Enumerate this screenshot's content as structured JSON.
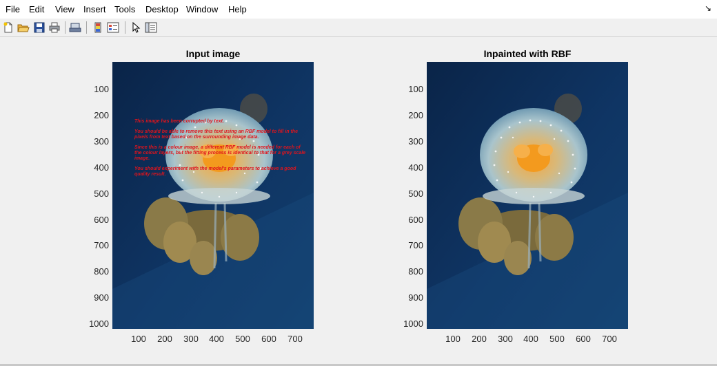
{
  "menu": {
    "items": [
      "File",
      "Edit",
      "View",
      "Insert",
      "Tools",
      "Desktop",
      "Window",
      "Help"
    ],
    "corner_arrow": "↘"
  },
  "toolbar": {
    "buttons": [
      "new-figure-icon",
      "open-file-icon",
      "save-icon",
      "print-icon",
      "print-preview-icon",
      "insert-colorbar-icon",
      "insert-legend-icon",
      "edit-plot-icon",
      "property-inspector-icon"
    ]
  },
  "axes": [
    {
      "title": "Input image",
      "yticks": [
        "100",
        "200",
        "300",
        "400",
        "500",
        "600",
        "700",
        "800",
        "900",
        "1000"
      ],
      "xticks": [
        "100",
        "200",
        "300",
        "400",
        "500",
        "600",
        "700"
      ],
      "overlay_text": [
        "This image has been corrupted by text.",
        "You should be able to remove this text using an RBF model to fill in the pixels from text based on the surrounding image data.",
        "Since this is a colour image, a different RBF model is needed for each of the colour layers, but the fitting process is identical to that for a grey scale image.",
        "You should experiment with the model's parameters to achieve a good quality result."
      ]
    },
    {
      "title": "Inpainted with RBF",
      "yticks": [
        "100",
        "200",
        "300",
        "400",
        "500",
        "600",
        "700",
        "800",
        "900",
        "1000"
      ],
      "xticks": [
        "100",
        "200",
        "300",
        "400",
        "500",
        "600",
        "700"
      ]
    }
  ],
  "colors": {
    "overlay_text": "#e0141c",
    "water_dark": "#0a2448",
    "water_mid": "#12406e"
  }
}
